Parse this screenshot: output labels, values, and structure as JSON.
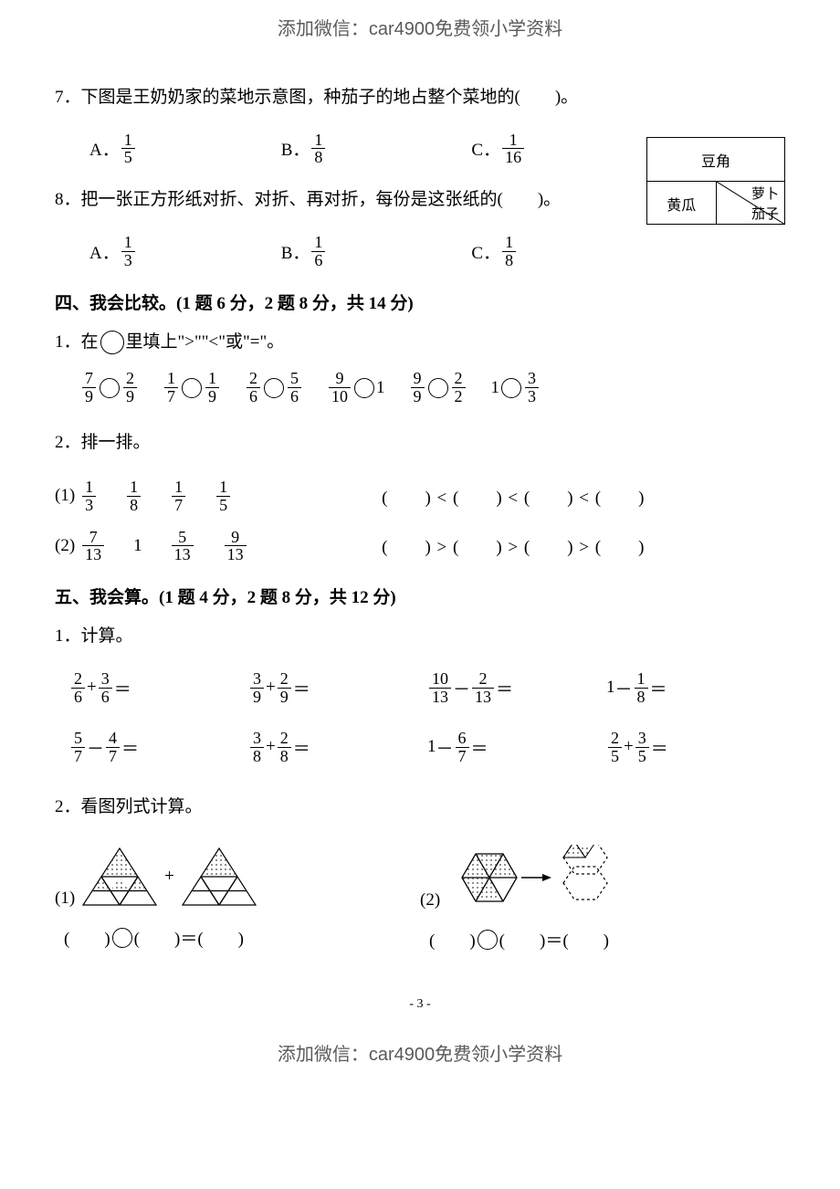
{
  "header": "添加微信：car4900免费领小学资料",
  "footer": "添加微信：car4900免费领小学资料",
  "page_number": "- 3 -",
  "q7": {
    "text": "7．下图是王奶奶家的菜地示意图，种茄子的地占整个菜地的(　　)。",
    "A_label": "A．",
    "A_num": "1",
    "A_den": "5",
    "B_label": "B．",
    "B_num": "1",
    "B_den": "8",
    "C_label": "C．",
    "C_num": "1",
    "C_den": "16",
    "veg_top": "豆角",
    "veg_bl": "黄瓜",
    "veg_tr": "萝卜",
    "veg_br": "茄子"
  },
  "q8": {
    "text": "8．把一张正方形纸对折、对折、再对折，每份是这张纸的(　　)。",
    "A_label": "A．",
    "A_num": "1",
    "A_den": "3",
    "B_label": "B．",
    "B_num": "1",
    "B_den": "6",
    "C_label": "C．",
    "C_num": "1",
    "C_den": "8"
  },
  "s4": {
    "title": "四、我会比较。(1 题 6 分，2 题 8 分，共 14 分)",
    "p1_text_a": "1．在",
    "p1_text_b": "里填上\">\"\"<\"或\"=\"。",
    "cmp": [
      {
        "ln": "7",
        "ld": "9",
        "rn": "2",
        "rd": "9"
      },
      {
        "ln": "1",
        "ld": "7",
        "rn": "1",
        "rd": "9"
      },
      {
        "ln": "2",
        "ld": "6",
        "rn": "5",
        "rd": "6"
      },
      {
        "ln": "9",
        "ld": "10",
        "r_whole": "1"
      },
      {
        "ln": "9",
        "ld": "9",
        "rn": "2",
        "rd": "2"
      },
      {
        "l_whole": "1",
        "rn": "3",
        "rd": "3"
      }
    ],
    "p2_text": "2．排一排。",
    "sort1_label": "(1)",
    "sort1": [
      {
        "n": "1",
        "d": "3"
      },
      {
        "n": "1",
        "d": "8"
      },
      {
        "n": "1",
        "d": "7"
      },
      {
        "n": "1",
        "d": "5"
      }
    ],
    "sort1_ans": "(　　) < (　　) < (　　) < (　　)",
    "sort2_label": "(2)",
    "sort2_a": {
      "n": "7",
      "d": "13"
    },
    "sort2_b_whole": "1",
    "sort2_c": {
      "n": "5",
      "d": "13"
    },
    "sort2_d": {
      "n": "9",
      "d": "13"
    },
    "sort2_ans": "(　　) > (　　) > (　　) > (　　)"
  },
  "s5": {
    "title": "五、我会算。(1 题 4 分，2 题 8 分，共 12 分)",
    "p1_text": "1．计算。",
    "calc": [
      {
        "an": "2",
        "ad": "6",
        "op": "+",
        "bn": "3",
        "bd": "6"
      },
      {
        "an": "3",
        "ad": "9",
        "op": "+",
        "bn": "2",
        "bd": "9"
      },
      {
        "an": "10",
        "ad": "13",
        "op": "－",
        "bn": "2",
        "bd": "13"
      },
      {
        "a_whole": "1",
        "op": "－",
        "bn": "1",
        "bd": "8"
      },
      {
        "an": "5",
        "ad": "7",
        "op": "－",
        "bn": "4",
        "bd": "7"
      },
      {
        "an": "3",
        "ad": "8",
        "op": "+",
        "bn": "2",
        "bd": "8"
      },
      {
        "a_whole": "1",
        "op": "－",
        "bn": "6",
        "bd": "7"
      },
      {
        "an": "2",
        "ad": "5",
        "op": "+",
        "bn": "3",
        "bd": "5"
      }
    ],
    "p2_text": "2．看图列式计算。",
    "fig1_label": "(1)",
    "fig1_plus": "+",
    "fig2_label": "(2)",
    "eq_template": {
      "lp": "(　　)",
      "rp": "(　　)",
      "eq": "＝",
      "res": "(　　)"
    }
  },
  "colors": {
    "bg": "#ffffff",
    "text": "#000000",
    "header": "#5a5a5a",
    "hatch": "#404040"
  }
}
